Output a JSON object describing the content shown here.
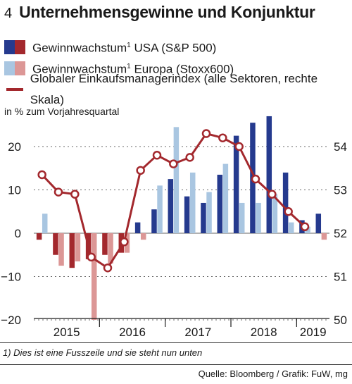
{
  "header": {
    "figure_number": "4",
    "title": "Unternehmensgewinne und Konjunktur"
  },
  "legend": {
    "usa": {
      "text": "Gewinnwachstum",
      "sup": "1",
      "rest": " USA (S&P 500)"
    },
    "europe": {
      "text": "Gewinnwachstum",
      "sup": "1",
      "rest": " Europa (Stoxx600)"
    },
    "pmi": {
      "text": "Globaler Einkaufsmanagerindex (alle Sektoren, rechte Skala)"
    }
  },
  "unit_label": "in % zum Vorjahresquartal",
  "footnote": "1) Dies ist eine Fusszeile und sie steht nun unten",
  "source": "Quelle: Bloomberg / Grafik: FuW, mg",
  "colors": {
    "usa_positive": "#253a8e",
    "usa_negative": "#a3282d",
    "europe_positive": "#a9c6e1",
    "europe_negative": "#dc9796",
    "pmi_line": "#a3282d",
    "grid": "#666666"
  },
  "chart_data": {
    "type": "bar",
    "quarters": [
      "2015 Q1",
      "2015 Q2",
      "2015 Q3",
      "2015 Q4",
      "2016 Q1",
      "2016 Q2",
      "2016 Q3",
      "2016 Q4",
      "2017 Q1",
      "2017 Q2",
      "2017 Q3",
      "2017 Q4",
      "2018 Q1",
      "2018 Q2",
      "2018 Q3",
      "2018 Q4",
      "2019 Q1",
      "2019 Q2"
    ],
    "year_labels": [
      "2015",
      "2016",
      "2017",
      "2018",
      "2019"
    ],
    "series": [
      {
        "name": "Gewinnwachstum USA (S&P 500)",
        "axis": "left",
        "values": [
          -1.5,
          -5,
          -8,
          -6,
          -5,
          -4.5,
          2.5,
          5.5,
          12.5,
          8.5,
          7,
          13.5,
          22.5,
          25.5,
          27,
          14,
          3,
          4.5
        ]
      },
      {
        "name": "Gewinnwachstum Europa (Stoxx600)",
        "axis": "left",
        "values": [
          4.5,
          -7.5,
          -6.5,
          -20,
          -7,
          -4.5,
          -1.5,
          11,
          24.5,
          14,
          9.5,
          16,
          7,
          7,
          9,
          2.5,
          1.5,
          -1.5
        ]
      },
      {
        "name": "Globaler Einkaufsmanagerindex (alle Sektoren, rechte Skala)",
        "type": "line",
        "axis": "right",
        "values": [
          53.35,
          52.95,
          52.9,
          51.45,
          51.2,
          51.8,
          53.45,
          53.8,
          53.6,
          53.75,
          54.3,
          54.2,
          54.0,
          53.25,
          52.9,
          52.5,
          52.15
        ]
      }
    ],
    "y_left": {
      "ticks": [
        "20",
        "10",
        "0",
        "−10",
        "−20"
      ],
      "range": [
        -20,
        27
      ]
    },
    "y_right": {
      "ticks": [
        "54",
        "53",
        "52",
        "51",
        "50"
      ],
      "range": [
        50,
        54.7
      ]
    }
  }
}
